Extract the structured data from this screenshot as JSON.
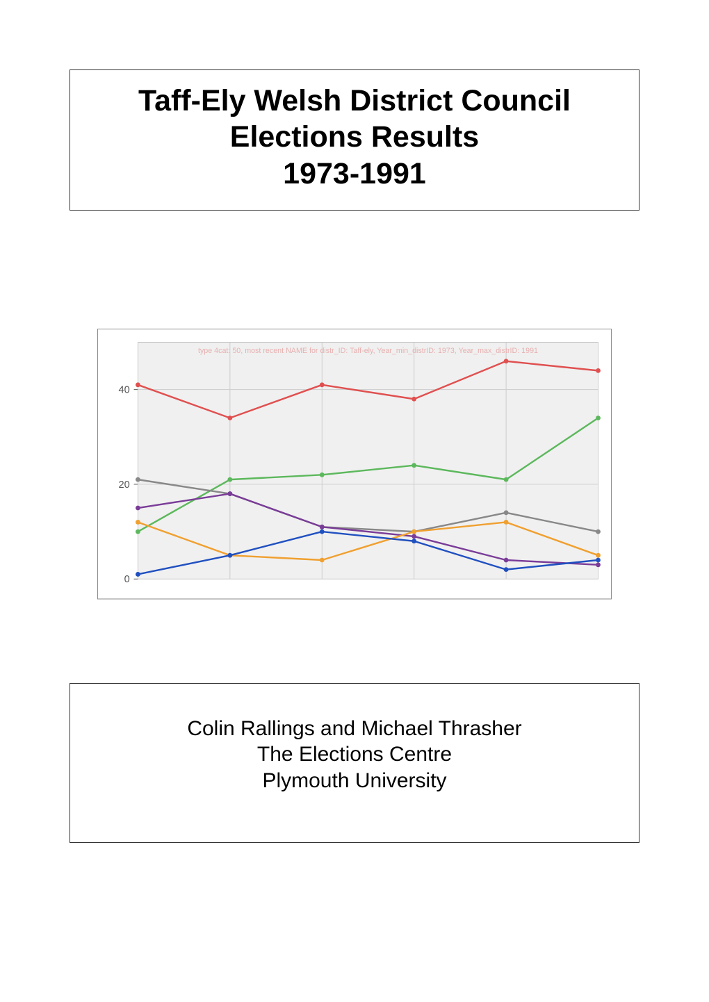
{
  "title_box": {
    "line1": "Taff-Ely Welsh District Council",
    "line2": "Elections Results",
    "line3": "1973-1991"
  },
  "chart": {
    "type": "line",
    "background_color": "#f0f0f0",
    "grid_color": "#cccccc",
    "border_color": "#888888",
    "caption_text": "type 4cat: 50, most recent NAME for distr_ID: Taff-ely, Year_min_distrID: 1973,   Year_max_distrID: 1991",
    "caption_color": "#e8b0b0",
    "caption_fontsize": 11,
    "x_points": [
      0,
      1,
      2,
      3,
      4,
      5
    ],
    "ylim": [
      0,
      50
    ],
    "yticks": [
      0,
      20,
      40
    ],
    "ytick_labels": [
      "0",
      "20",
      "40"
    ],
    "ytick_fontsize": 15,
    "ytick_color": "#555555",
    "line_width": 2.5,
    "marker_radius": 3.5,
    "series": [
      {
        "name": "red",
        "color": "#e05050",
        "values": [
          41,
          34,
          41,
          38,
          46,
          44
        ]
      },
      {
        "name": "green",
        "color": "#5cb85c",
        "values": [
          10,
          21,
          22,
          24,
          21,
          34
        ]
      },
      {
        "name": "grey",
        "color": "#888888",
        "values": [
          21,
          18,
          11,
          10,
          14,
          10
        ]
      },
      {
        "name": "purple",
        "color": "#7a3c98",
        "values": [
          15,
          18,
          11,
          9,
          4,
          3
        ]
      },
      {
        "name": "orange",
        "color": "#f0a030",
        "values": [
          12,
          5,
          4,
          10,
          12,
          5
        ]
      },
      {
        "name": "blue",
        "color": "#2050c0",
        "values": [
          1,
          5,
          10,
          8,
          2,
          4
        ]
      }
    ]
  },
  "authors_box": {
    "line1": "Colin Rallings and Michael Thrasher",
    "line2": "The Elections Centre",
    "line3": "Plymouth University"
  }
}
